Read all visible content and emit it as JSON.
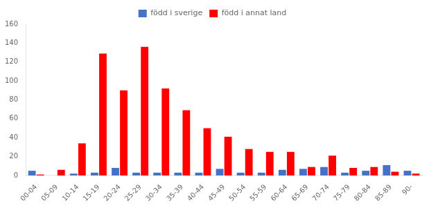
{
  "chart_data": {
    "type": "bar",
    "categories": [
      "00-04",
      "05-09",
      "10-14",
      "15-19",
      "20-24",
      "25-29",
      "30-34",
      "35-39",
      "40-44",
      "45-49",
      "50-54",
      "55-59",
      "60-64",
      "65-69",
      "70-74",
      "75-79",
      "80-84",
      "85-89",
      "90-"
    ],
    "series": [
      {
        "name": "född i sverige",
        "color": "#4472C4",
        "values": [
          5,
          0,
          2,
          3,
          8,
          3,
          3,
          3,
          3,
          7,
          3,
          3,
          6,
          7,
          9,
          3,
          5,
          11,
          5
        ]
      },
      {
        "name": "född i annat land",
        "color": "#FF0000",
        "values": [
          1,
          6,
          34,
          129,
          90,
          136,
          92,
          69,
          50,
          41,
          28,
          25,
          25,
          9,
          21,
          8,
          9,
          4,
          2
        ]
      }
    ],
    "ylim": [
      0,
      160
    ],
    "yticks": [
      0,
      20,
      40,
      60,
      80,
      100,
      120,
      140,
      160
    ],
    "grid": false,
    "legend": "top"
  }
}
